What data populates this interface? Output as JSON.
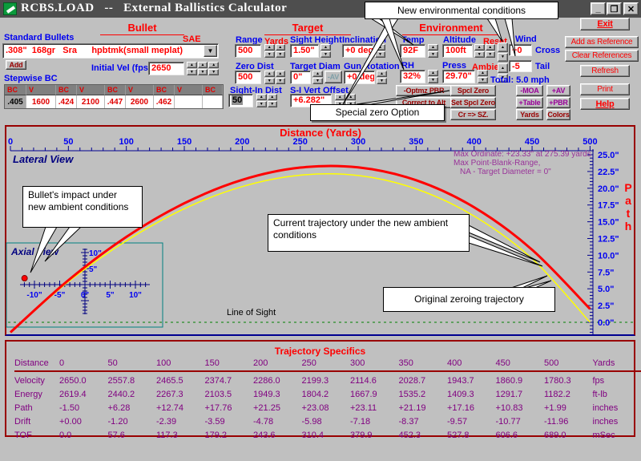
{
  "window": {
    "title": "RCBS.LOAD   --   External Ballistics Calculator",
    "minimize": "_",
    "restore": "❐",
    "close": "✕"
  },
  "sections": {
    "bullet": "Bullet",
    "target": "Target",
    "environment": "Environment"
  },
  "bullet": {
    "standard_bullets_label": "Standard Bullets",
    "sae_label": "SAE",
    "selected_bullet": ".308\"  168gr   Sra      hpbtmk(small meplat)",
    "dropdown_arrow": "▼",
    "add_button": "Add",
    "initial_vel_label": "Initial Vel (fps)",
    "initial_vel_value": "2650",
    "stepwise_bc_label": "Stepwise BC",
    "bc_headers": [
      "BC",
      "V",
      "BC",
      "V",
      "BC",
      "V",
      "BC",
      "V",
      "BC"
    ],
    "bc_values": [
      ".405",
      "1600",
      ".424",
      "2100",
      ".447",
      "2600",
      ".462",
      "",
      ""
    ]
  },
  "target": {
    "range_label": "Range",
    "range_unit": "Yards",
    "range_value": "500",
    "sight_height_label": "Sight Height",
    "sight_height_value": "1.50\"",
    "inclination_label": "Inclination",
    "inclination_value": "+0 deg",
    "zero_dist_label": "Zero Dist",
    "zero_dist_value": "500",
    "target_diam_label": "Target Diam",
    "target_diam_value": "0\"",
    "av_button": "-AV",
    "gun_rotation_label": "Gun Rotation",
    "gun_rotation_value": "+0 deg",
    "sight_in_label": "Sight-In Dist",
    "sight_in_value": "50",
    "si_vert_offset_label": "S-I Vert Offset",
    "si_vert_offset_value": "+6.282\""
  },
  "environment": {
    "temp_label": "Temp",
    "temp_value": "92F",
    "altitude_label": "Altitude",
    "altitude_value": "100ft",
    "reset_label": "Reset",
    "rh_label": "RH",
    "rh_value": "32%",
    "press_label": "Press",
    "press_value": "29.70\"",
    "ambient_label": "Ambient",
    "wind_label": "Wind",
    "wind_cross_value": "+0",
    "wind_cross_label": "Cross",
    "wind_tail_value": "-5",
    "wind_tail_label": "Tail",
    "wind_total": "Total:  5.0 mph"
  },
  "buttons": {
    "optmz_pbr": "-Optmz PBR",
    "correct_to_alt": "Correct to Alt",
    "spcl_zero": "Spcl Zero",
    "set_spcl_zero": "Set Spcl Zero",
    "cr_sz": "Cr => SZ.",
    "moa": "-MOA",
    "plus_table": "+Table",
    "yards": "Yards",
    "av": "+AV",
    "pbr": "+PBR",
    "colors": "Colors",
    "exit": "Exit",
    "add_reference": "Add as Reference",
    "clear_references": "Clear References",
    "refresh": "Refresh",
    "print": "Print",
    "help": "Help"
  },
  "callouts": {
    "env": "New environmental conditions",
    "special_zero": "Special zero Option",
    "impact": "Bullet's impact under new ambient conditions",
    "current": "Current trajectory under the new ambient conditions",
    "original": "Original zeroing trajectory"
  },
  "chart": {
    "title": "Distance  (Yards)",
    "lateral_view": "Lateral View",
    "axial_view": "Axial View",
    "notes": [
      "Max Ordinate: +23.33\" at 275.39 yards",
      "Max Point-Blank-Range,",
      "NA - Target Diameter = 0\""
    ],
    "line_of_sight": "Line of Sight",
    "path_label": "Path"
  },
  "chart_data": {
    "type": "line",
    "title": "Distance (Yards)",
    "ylabel": "Path",
    "x_yards": [
      0,
      50,
      100,
      150,
      200,
      250,
      300,
      350,
      400,
      450,
      500
    ],
    "x_tick_labels": [
      "0",
      "50",
      "100",
      "150",
      "200",
      "250",
      "300",
      "350",
      "400",
      "450",
      "500"
    ],
    "y_ticks_inches": [
      25,
      22.5,
      20,
      17.5,
      15,
      12.5,
      10,
      7.5,
      5,
      2.5,
      0
    ],
    "y_tick_labels": [
      "25.0\"",
      "22.5\"",
      "20.0\"",
      "17.5\"",
      "15.0\"",
      "12.5\"",
      "10.0\"",
      "7.5\"",
      "5.0\"",
      "2.5\"",
      "0.0\""
    ],
    "xlim": [
      0,
      500
    ],
    "ylim": [
      0,
      25
    ],
    "legend_position": "none",
    "grid": false,
    "max_ordinate": "+23.33\" at 275.39 yards",
    "series": [
      {
        "name": "Current trajectory under the new ambient conditions",
        "color": "#ff0000",
        "width": 3,
        "path_inches": [
          -1.5,
          6.28,
          12.74,
          17.76,
          21.25,
          23.08,
          23.11,
          21.19,
          17.16,
          10.83,
          1.99
        ]
      },
      {
        "name": "Original zeroing trajectory",
        "color": "#ffff00",
        "width": 1.5,
        "path_inches": [
          -1.5,
          6.05,
          12.15,
          16.95,
          20.25,
          21.95,
          21.9,
          19.9,
          15.85,
          9.5,
          0.0
        ]
      }
    ],
    "axial": {
      "x_tick_values": [
        -10,
        -5,
        0,
        5,
        10
      ],
      "x_tick_labels": [
        "-10\"",
        "-5\"",
        "0\"",
        "5\"",
        "10\""
      ],
      "y_tick_values": [
        5,
        10
      ],
      "y_tick_labels": [
        "5\"",
        "10\""
      ],
      "impact_point_inches": {
        "drift": -11.96,
        "path": 1.99
      }
    }
  },
  "table": {
    "title": "Trajectory Specifics",
    "header": [
      "Distance",
      "0",
      "50",
      "100",
      "150",
      "200",
      "250",
      "300",
      "350",
      "400",
      "450",
      "500",
      "Yards"
    ],
    "rows": [
      [
        "Velocity",
        "2650.0",
        "2557.8",
        "2465.5",
        "2374.7",
        "2286.0",
        "2199.3",
        "2114.6",
        "2028.7",
        "1943.7",
        "1860.9",
        "1780.3",
        "fps"
      ],
      [
        "Energy",
        "2619.4",
        "2440.2",
        "2267.3",
        "2103.5",
        "1949.3",
        "1804.2",
        "1667.9",
        "1535.2",
        "1409.3",
        "1291.7",
        "1182.2",
        "ft-lb"
      ],
      [
        "Path",
        "-1.50",
        "+6.28",
        "+12.74",
        "+17.76",
        "+21.25",
        "+23.08",
        "+23.11",
        "+21.19",
        "+17.16",
        "+10.83",
        "+1.99",
        "inches"
      ],
      [
        "Drift",
        "+0.00",
        "-1.20",
        "-2.39",
        "-3.59",
        "-4.78",
        "-5.98",
        "-7.18",
        "-8.37",
        "-9.57",
        "-10.77",
        "-11.96",
        "inches"
      ],
      [
        "TOF",
        "0.0",
        "57.6",
        "117.3",
        "179.2",
        "243.6",
        "310.4",
        "379.9",
        "452.3",
        "527.8",
        "606.6",
        "689.0",
        "mSec"
      ]
    ]
  }
}
